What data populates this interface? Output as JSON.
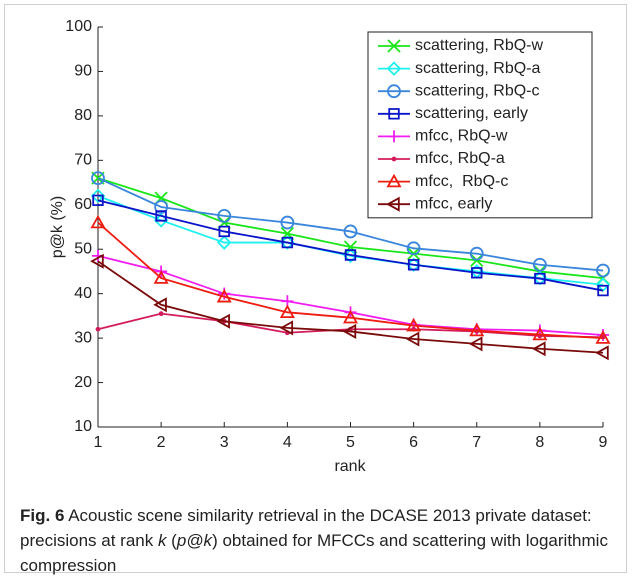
{
  "chart_data": {
    "type": "line",
    "xlabel": "rank",
    "ylabel": "p@k (%)",
    "x": [
      1,
      2,
      3,
      4,
      5,
      6,
      7,
      8,
      9
    ],
    "xlim": [
      1,
      9
    ],
    "xticks": [
      1,
      2,
      3,
      4,
      5,
      6,
      7,
      8,
      9
    ],
    "ylim": [
      10,
      100
    ],
    "yticks": [
      10,
      20,
      30,
      40,
      50,
      60,
      70,
      80,
      90,
      100
    ],
    "legend": "upper right",
    "series": [
      {
        "name": "scattering, RbQ-w",
        "color": "#19e619",
        "marker": "x",
        "values": [
          66,
          61.5,
          56,
          53.5,
          50.5,
          49,
          47.5,
          45,
          43.5
        ]
      },
      {
        "name": "scattering, RbQ-a",
        "color": "#1ff0f0",
        "marker": "diamond",
        "values": [
          62,
          56.5,
          51.5,
          51.5,
          48.5,
          46.5,
          45,
          43.5,
          42
        ]
      },
      {
        "name": "scattering, RbQ-c",
        "color": "#3a86dc",
        "marker": "circle",
        "values": [
          66,
          59.5,
          57.5,
          56,
          54,
          50.2,
          49,
          46.5,
          45.2
        ]
      },
      {
        "name": "scattering, early",
        "color": "#0a14c8",
        "marker": "square",
        "values": [
          61,
          57.5,
          54,
          51.5,
          48.7,
          46.5,
          44.7,
          43.4,
          40.7
        ]
      },
      {
        "name": "mfcc, RbQ-w",
        "color": "#f01cf0",
        "marker": "plus",
        "values": [
          48.5,
          45,
          40,
          38.3,
          35.8,
          33,
          32,
          31.7,
          30.7
        ]
      },
      {
        "name": "mfcc, RbQ-a",
        "color": "#d41c5c",
        "marker": "dot",
        "values": [
          32,
          35.5,
          33.8,
          31.2,
          32,
          32,
          31.5,
          30.5,
          30.2
        ]
      },
      {
        "name": "mfcc,  RbQ-c",
        "color": "#ee1c10",
        "marker": "triangle-up",
        "values": [
          56,
          43.5,
          39.3,
          35.8,
          34.6,
          32.8,
          31.7,
          30.8,
          30
        ]
      },
      {
        "name": "mfcc, early",
        "color": "#7a0a0a",
        "marker": "triangle-left",
        "values": [
          47.3,
          37.5,
          33.8,
          32.3,
          31.5,
          29.8,
          28.7,
          27.6,
          26.7
        ]
      }
    ]
  },
  "caption": {
    "label": "Fig. 6",
    "runs": [
      {
        "text": " Acoustic scene similarity retrieval in the DCASE 2013 private dataset: precisions at rank ",
        "italic": false
      },
      {
        "text": "k",
        "italic": true
      },
      {
        "text": " (",
        "italic": false
      },
      {
        "text": "p@k",
        "italic": true
      },
      {
        "text": ") obtained for MFCCs and scattering with logarithmic compression",
        "italic": false
      }
    ]
  }
}
